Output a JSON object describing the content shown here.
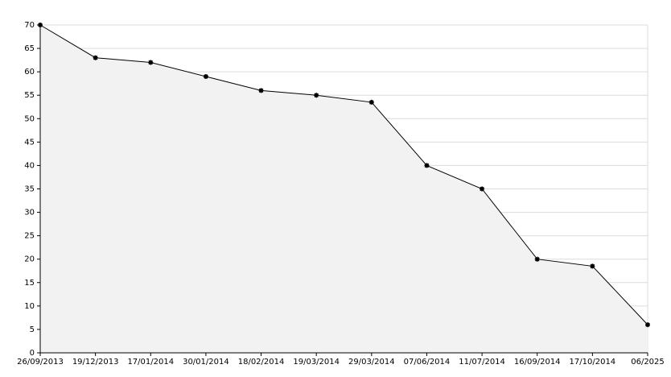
{
  "chart_data": {
    "type": "area",
    "categories": [
      "26/09/2013",
      "19/12/2013",
      "17/01/2014",
      "30/01/2014",
      "18/02/2014",
      "19/03/2014",
      "29/03/2014",
      "07/06/2014",
      "11/07/2014",
      "16/09/2014",
      "17/10/2014",
      "06/2025"
    ],
    "values": [
      70,
      63,
      62,
      59,
      56,
      55,
      53.5,
      40,
      35,
      20,
      18.5,
      6
    ],
    "color": "#000000",
    "fill_color": "#f2f2f2",
    "ylim": [
      0,
      70
    ],
    "yticks": [
      0,
      5,
      10,
      15,
      20,
      25,
      30,
      35,
      40,
      45,
      50,
      55,
      60,
      65,
      70
    ],
    "grid": true
  }
}
